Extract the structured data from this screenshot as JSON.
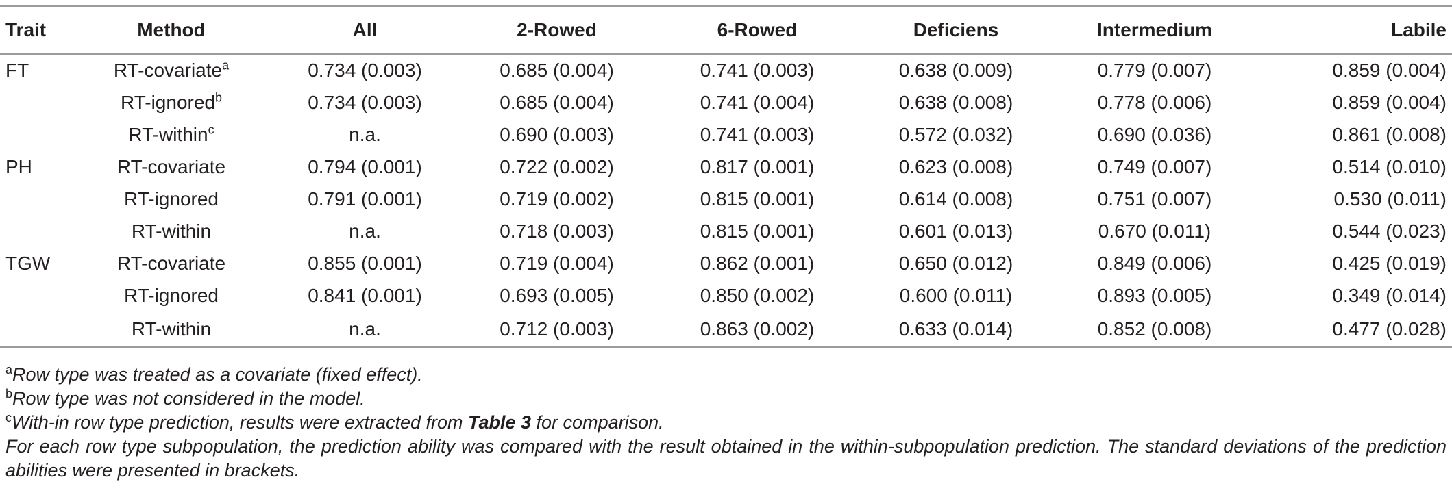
{
  "table": {
    "headers": [
      "Trait",
      "Method",
      "All",
      "2-Rowed",
      "6-Rowed",
      "Deficiens",
      "Intermedium",
      "Labile"
    ],
    "rows": [
      {
        "trait": "FT",
        "method": "RT-covariate",
        "mark": "a",
        "values": [
          "0.734 (0.003)",
          "0.685 (0.004)",
          "0.741 (0.003)",
          "0.638 (0.009)",
          "0.779 (0.007)",
          "0.859 (0.004)"
        ]
      },
      {
        "trait": "",
        "method": "RT-ignored",
        "mark": "b",
        "values": [
          "0.734 (0.003)",
          "0.685 (0.004)",
          "0.741 (0.004)",
          "0.638 (0.008)",
          "0.778 (0.006)",
          "0.859 (0.004)"
        ]
      },
      {
        "trait": "",
        "method": "RT-within",
        "mark": "c",
        "values": [
          "n.a.",
          "0.690 (0.003)",
          "0.741 (0.003)",
          "0.572 (0.032)",
          "0.690 (0.036)",
          "0.861 (0.008)"
        ]
      },
      {
        "trait": "PH",
        "method": "RT-covariate",
        "mark": "",
        "values": [
          "0.794 (0.001)",
          "0.722 (0.002)",
          "0.817 (0.001)",
          "0.623 (0.008)",
          "0.749 (0.007)",
          "0.514 (0.010)"
        ]
      },
      {
        "trait": "",
        "method": "RT-ignored",
        "mark": "",
        "values": [
          "0.791 (0.001)",
          "0.719 (0.002)",
          "0.815 (0.001)",
          "0.614 (0.008)",
          "0.751 (0.007)",
          "0.530 (0.011)"
        ]
      },
      {
        "trait": "",
        "method": "RT-within",
        "mark": "",
        "values": [
          "n.a.",
          "0.718 (0.003)",
          "0.815 (0.001)",
          "0.601 (0.013)",
          "0.670 (0.011)",
          "0.544 (0.023)"
        ]
      },
      {
        "trait": "TGW",
        "method": "RT-covariate",
        "mark": "",
        "values": [
          "0.855 (0.001)",
          "0.719 (0.004)",
          "0.862 (0.001)",
          "0.650 (0.012)",
          "0.849 (0.006)",
          "0.425 (0.019)"
        ]
      },
      {
        "trait": "",
        "method": "RT-ignored",
        "mark": "",
        "values": [
          "0.841 (0.001)",
          "0.693 (0.005)",
          "0.850 (0.002)",
          "0.600 (0.011)",
          "0.893 (0.005)",
          "0.349 (0.014)"
        ]
      },
      {
        "trait": "",
        "method": "RT-within",
        "mark": "",
        "values": [
          "n.a.",
          "0.712 (0.003)",
          "0.863 (0.002)",
          "0.633 (0.014)",
          "0.852 (0.008)",
          "0.477 (0.028)"
        ]
      }
    ]
  },
  "footnotes": {
    "a": {
      "mark": "a",
      "text": "Row type was treated as a covariate (fixed effect)."
    },
    "b": {
      "mark": "b",
      "text": "Row type was not considered in the model."
    },
    "c": {
      "mark": "c",
      "text_before": "With-in row type prediction, results were extracted from ",
      "ref": "Table 3",
      "text_after": " for comparison."
    },
    "general": "For each row type subpopulation, the prediction ability was compared with the result obtained in the within-subpopulation prediction. The standard deviations of the prediction abilities were presented in brackets."
  }
}
